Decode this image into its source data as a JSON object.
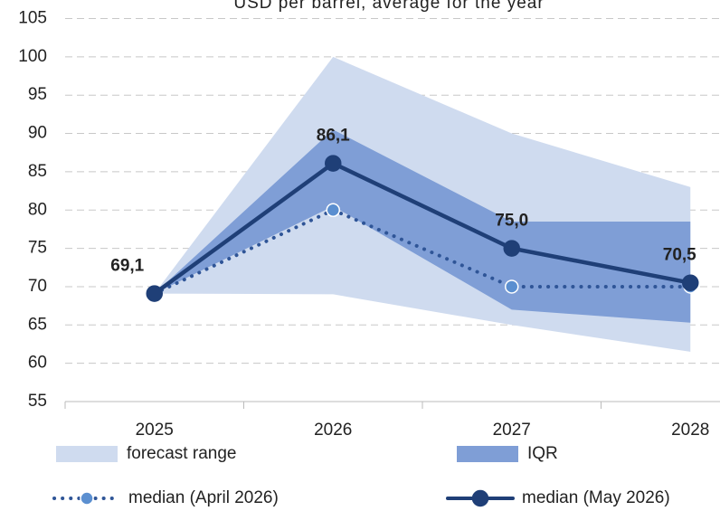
{
  "chart_data": {
    "type": "line",
    "title": "USD per barrel, average for the year",
    "categories": [
      "2025",
      "2026",
      "2027",
      "2028"
    ],
    "ylim": [
      55,
      105
    ],
    "yticks": [
      55,
      60,
      65,
      70,
      75,
      80,
      85,
      90,
      95,
      100,
      105
    ],
    "grid": true,
    "series": [
      {
        "name": "forecast range",
        "type": "band",
        "color": "#cfdbef",
        "low": [
          69.1,
          69,
          65,
          61.5
        ],
        "high": [
          69.1,
          100,
          90,
          83
        ]
      },
      {
        "name": "IQR",
        "type": "band",
        "color": "#7f9ed6",
        "low": [
          69.1,
          80.5,
          67,
          65.3
        ],
        "high": [
          69.1,
          90.5,
          78.5,
          78.5
        ]
      },
      {
        "name": "median (April 2026)",
        "type": "dotted",
        "color": "#2f5597",
        "marker_color": "#5b8fd0",
        "values": [
          69.1,
          80,
          70,
          70
        ]
      },
      {
        "name": "median (May 2026)",
        "type": "solid",
        "color": "#1f3f77",
        "values": [
          69.1,
          86.1,
          75.0,
          70.5
        ],
        "value_labels": [
          "69,1",
          "86,1",
          "75,0",
          "70,5"
        ]
      }
    ]
  }
}
